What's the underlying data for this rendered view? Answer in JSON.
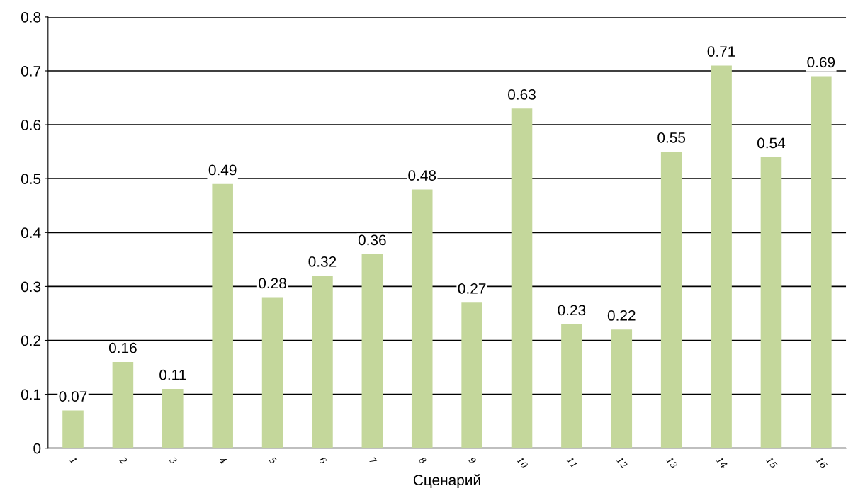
{
  "chart_data": {
    "type": "bar",
    "xlabel": "Сценарий",
    "categories": [
      "1",
      "2",
      "3",
      "4",
      "5",
      "6",
      "7",
      "8",
      "9",
      "10",
      "11",
      "12",
      "13",
      "14",
      "15",
      "16"
    ],
    "values": [
      0.07,
      0.16,
      0.11,
      0.49,
      0.28,
      0.32,
      0.36,
      0.48,
      0.27,
      0.63,
      0.23,
      0.22,
      0.55,
      0.71,
      0.54,
      0.69
    ],
    "color": "#c4d79b",
    "data_labels": true,
    "grid": "y",
    "ylim": [
      0,
      0.8
    ],
    "yticks": [
      {
        "value": 0,
        "label": "0"
      },
      0.1,
      0.2,
      0.3,
      0.4,
      0.5,
      0.6,
      0.7,
      0.8
    ]
  }
}
